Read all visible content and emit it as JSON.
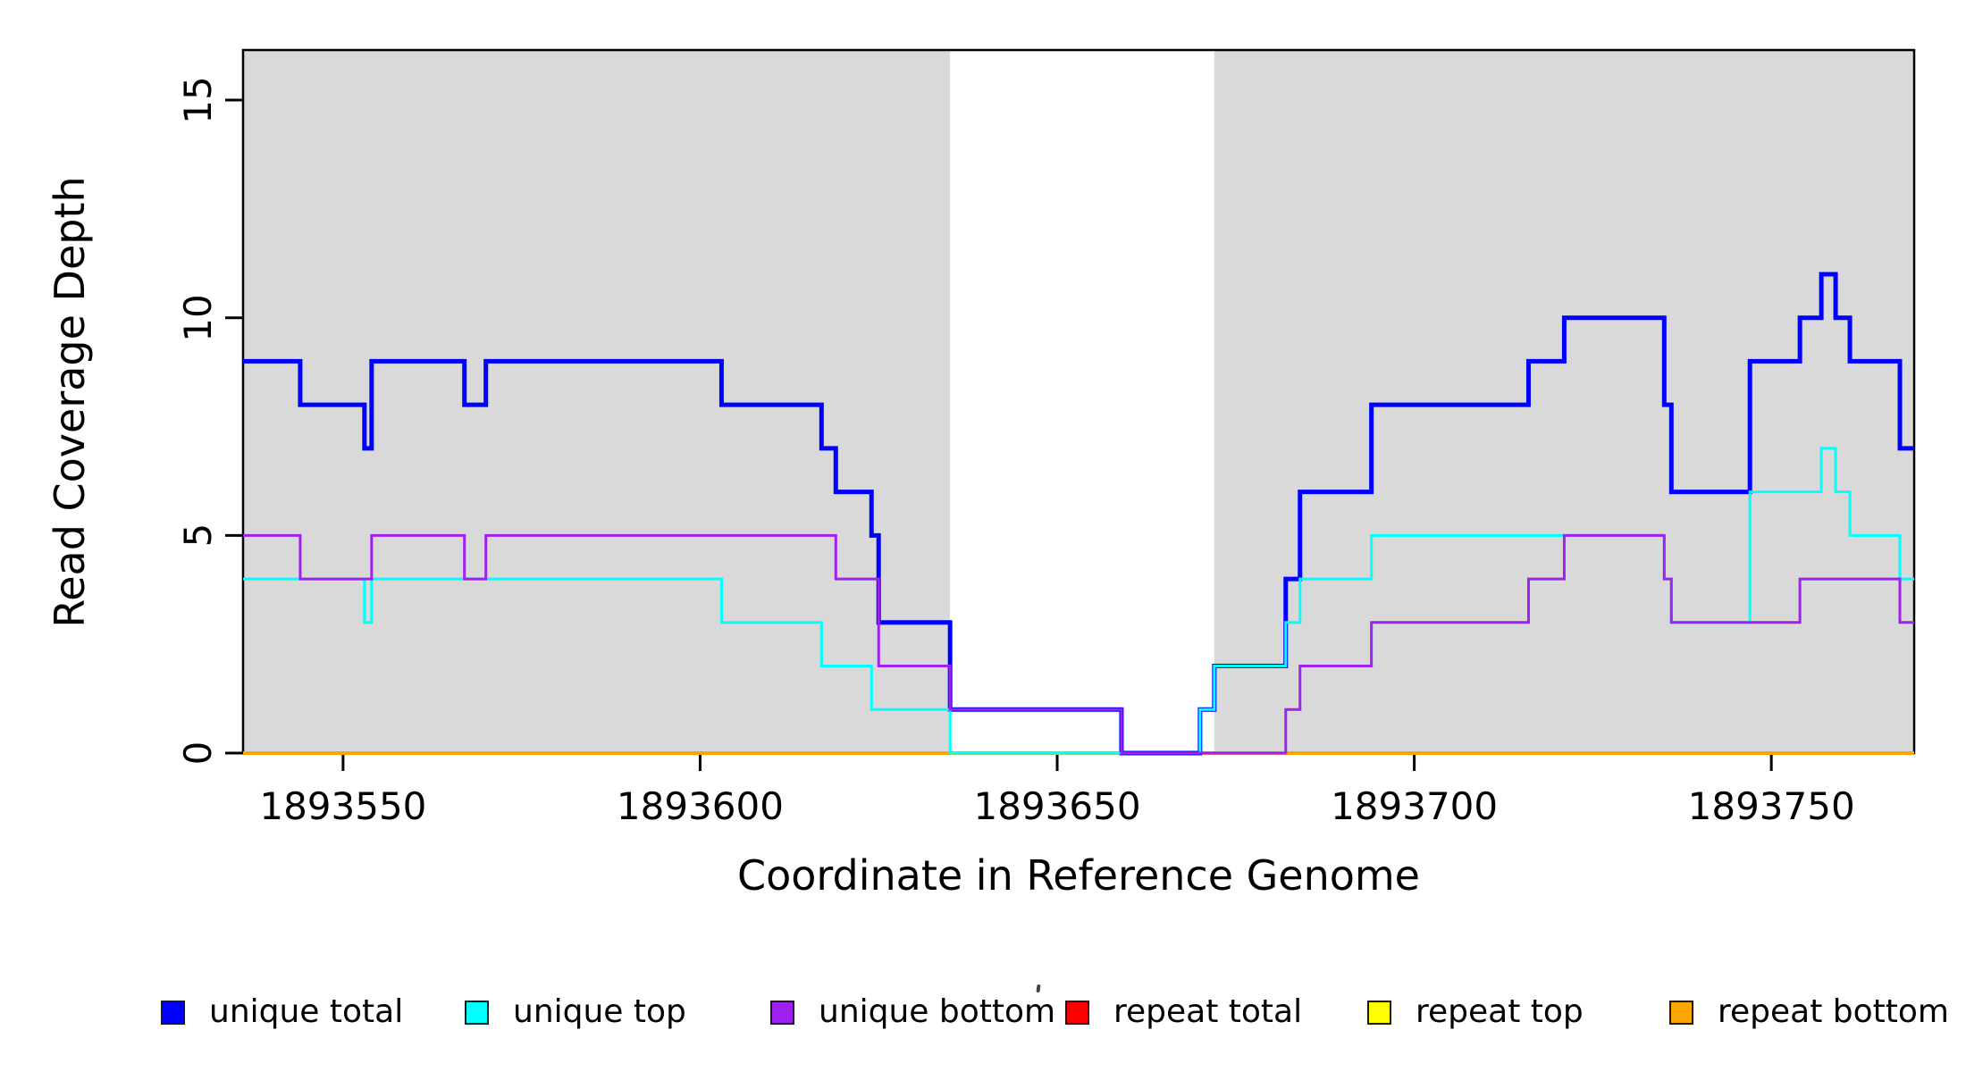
{
  "axes": {
    "x_label": "Coordinate in Reference Genome",
    "y_label": "Read Coverage Depth",
    "x_tick_labels": [
      "1893550",
      "1893600",
      "1893650",
      "1893700",
      "1893750"
    ],
    "y_tick_labels": [
      "0",
      "5",
      "10",
      "15"
    ]
  },
  "legend": {
    "entries": [
      {
        "label": "unique total",
        "color": "#0000FF"
      },
      {
        "label": "unique top",
        "color": "#00FFFF"
      },
      {
        "label": "unique bottom",
        "color": "#A020F0"
      },
      {
        "label": "repeat total",
        "color": "#FF0000"
      },
      {
        "label": "repeat top",
        "color": "#FFFF00"
      },
      {
        "label": "repeat bottom",
        "color": "#FFA500"
      }
    ]
  },
  "chart_data": {
    "type": "line",
    "subtype": "step",
    "title": "",
    "xlabel": "Coordinate in Reference Genome",
    "ylabel": "Read Coverage Depth",
    "xlim": [
      1893536,
      1893770
    ],
    "ylim": [
      0,
      16.15
    ],
    "x_ticks": [
      1893550,
      1893600,
      1893650,
      1893700,
      1893750
    ],
    "y_ticks": [
      0,
      5,
      10,
      15
    ],
    "grid": false,
    "legend_position": "bottom",
    "background_color": "#FFFFFF",
    "shaded_regions": {
      "color": "#D9D9D9",
      "ranges": [
        [
          1893536,
          1893635
        ],
        [
          1893672,
          1893770
        ]
      ]
    },
    "series": [
      {
        "name": "repeat total",
        "color": "#FF0000",
        "line_width": 3,
        "steps": [
          [
            1893536,
            0
          ]
        ]
      },
      {
        "name": "repeat top",
        "color": "#FFFF00",
        "line_width": 3,
        "steps": [
          [
            1893536,
            0
          ]
        ]
      },
      {
        "name": "repeat bottom",
        "color": "#FFA500",
        "line_width": 4,
        "steps": [
          [
            1893536,
            0
          ]
        ]
      },
      {
        "name": "unique total",
        "color": "#0000FF",
        "line_width": 5,
        "steps": [
          [
            1893536,
            9
          ],
          [
            1893544,
            8
          ],
          [
            1893553,
            7
          ],
          [
            1893554,
            9
          ],
          [
            1893567,
            8
          ],
          [
            1893570,
            9
          ],
          [
            1893603,
            8
          ],
          [
            1893617,
            7
          ],
          [
            1893619,
            6
          ],
          [
            1893624,
            5
          ],
          [
            1893625,
            3
          ],
          [
            1893635,
            1
          ],
          [
            1893659,
            0
          ],
          [
            1893670,
            1
          ],
          [
            1893672,
            2
          ],
          [
            1893682,
            4
          ],
          [
            1893684,
            6
          ],
          [
            1893694,
            8
          ],
          [
            1893716,
            9
          ],
          [
            1893721,
            10
          ],
          [
            1893735,
            8
          ],
          [
            1893736,
            6
          ],
          [
            1893747,
            9
          ],
          [
            1893754,
            10
          ],
          [
            1893757,
            11
          ],
          [
            1893759,
            10
          ],
          [
            1893761,
            9
          ],
          [
            1893768,
            7
          ]
        ]
      },
      {
        "name": "unique top",
        "color": "#00FFFF",
        "line_width": 3,
        "steps": [
          [
            1893536,
            4
          ],
          [
            1893553,
            3
          ],
          [
            1893554,
            4
          ],
          [
            1893603,
            3
          ],
          [
            1893617,
            2
          ],
          [
            1893624,
            1
          ],
          [
            1893635,
            0
          ],
          [
            1893670,
            1
          ],
          [
            1893672,
            2
          ],
          [
            1893682,
            3
          ],
          [
            1893684,
            4
          ],
          [
            1893694,
            5
          ],
          [
            1893735,
            4
          ],
          [
            1893736,
            3
          ],
          [
            1893747,
            6
          ],
          [
            1893757,
            7
          ],
          [
            1893759,
            6
          ],
          [
            1893761,
            5
          ],
          [
            1893768,
            4
          ]
        ]
      },
      {
        "name": "unique bottom",
        "color": "#A020F0",
        "line_width": 3,
        "steps": [
          [
            1893536,
            5
          ],
          [
            1893544,
            4
          ],
          [
            1893554,
            5
          ],
          [
            1893567,
            4
          ],
          [
            1893570,
            5
          ],
          [
            1893619,
            4
          ],
          [
            1893625,
            2
          ],
          [
            1893635,
            1
          ],
          [
            1893659,
            0
          ],
          [
            1893682,
            1
          ],
          [
            1893684,
            2
          ],
          [
            1893694,
            3
          ],
          [
            1893716,
            4
          ],
          [
            1893721,
            5
          ],
          [
            1893735,
            4
          ],
          [
            1893736,
            3
          ],
          [
            1893754,
            4
          ],
          [
            1893768,
            3
          ]
        ]
      }
    ]
  }
}
